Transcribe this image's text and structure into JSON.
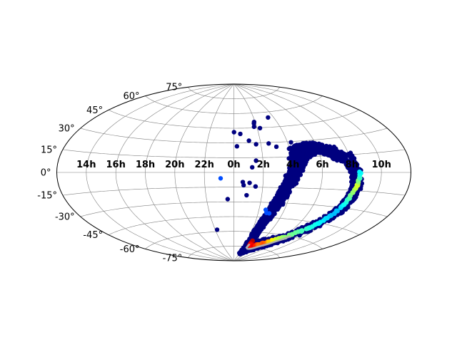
{
  "chart_data": {
    "type": "scatter",
    "projection": "aitoff",
    "grid": true,
    "colormap": "jet",
    "ra_tick_labels": [
      "14h",
      "16h",
      "18h",
      "20h",
      "22h",
      "0h",
      "2h",
      "4h",
      "6h",
      "8h",
      "10h"
    ],
    "dec_tick_labels": [
      "-75°",
      "-60°",
      "-45°",
      "-30°",
      "-15°",
      "0°",
      "15°",
      "30°",
      "45°",
      "60°",
      "75°"
    ],
    "lon_grid_deg": [
      -150,
      -120,
      -90,
      -60,
      -30,
      0,
      30,
      60,
      90,
      120,
      150
    ],
    "lat_grid_deg": [
      -75,
      -60,
      -45,
      -30,
      -15,
      0,
      15,
      30,
      45,
      60,
      75
    ],
    "background_color": "#00007f",
    "high_density_track": [
      [
        40.6,
        -69.7
      ],
      [
        42.7,
        -72.9
      ],
      [
        48.4,
        -74.0
      ],
      [
        56.2,
        -73.2
      ],
      [
        64.0,
        -71.6
      ],
      [
        71.7,
        -69.4
      ],
      [
        79.5,
        -66.8
      ],
      [
        87.7,
        -63.4
      ],
      [
        95.8,
        -59.2
      ],
      [
        104.0,
        -53.9
      ],
      [
        111.0,
        -48.0
      ],
      [
        116.5,
        -41.4
      ],
      [
        120.2,
        -33.9
      ],
      [
        123.0,
        -25.2
      ],
      [
        124.9,
        -17.1
      ],
      [
        126.9,
        -10.1
      ],
      [
        128.1,
        -4.1
      ],
      [
        128.8,
        1.2
      ]
    ],
    "outline_track": [
      [
        40.0,
        -72.2
      ],
      [
        39.3,
        -76.1
      ],
      [
        41.6,
        -76.2
      ],
      [
        44.8,
        -77.1
      ],
      [
        50.5,
        -77.1
      ],
      [
        55.6,
        -76.7
      ],
      [
        61.3,
        -75.7
      ],
      [
        67.7,
        -74.0
      ],
      [
        75.6,
        -71.8
      ],
      [
        82.0,
        -69.8
      ],
      [
        88.6,
        -66.6
      ],
      [
        95.0,
        -63.4
      ],
      [
        100.0,
        -59.7
      ]
    ],
    "sparse_points": [
      [
        -13.5,
        -6.0,
        0.2
      ],
      [
        40.2,
        -40.5,
        0.2
      ],
      [
        38.1,
        -37.5,
        0.2
      ],
      [
        43.7,
        -40.8,
        0.2
      ],
      [
        -27.0,
        -58.0,
        0.0
      ],
      [
        -6.8,
        -27.2,
        0.0
      ],
      [
        7.8,
        39.2,
        0.0
      ],
      [
        17.2,
        32.2,
        0.0
      ],
      [
        24.7,
        28.5,
        0.0
      ],
      [
        26.6,
        46.2,
        0.0
      ],
      [
        27.7,
        49.5,
        0.0
      ],
      [
        28.6,
        51.0,
        0.0
      ],
      [
        33.7,
        44.6,
        0.0
      ],
      [
        38.8,
        29.0,
        0.0
      ],
      [
        46.4,
        25.5,
        0.0
      ],
      [
        51.8,
        54.6,
        0.0
      ],
      [
        63.9,
        29.2,
        0.0
      ],
      [
        57.1,
        13.7,
        0.0
      ],
      [
        0.2,
        41.0,
        0.0
      ],
      [
        3.4,
        26.6,
        0.0
      ],
      [
        18.7,
        5.2,
        0.0
      ],
      [
        16.2,
        -10.6,
        0.0
      ],
      [
        22.5,
        -14.2,
        0.0
      ],
      [
        22.9,
        11.9,
        0.0
      ],
      [
        13.7,
        -23.2,
        0.0
      ],
      [
        10.1,
        -13.0,
        0.0
      ],
      [
        9.2,
        -9.8,
        0.0
      ]
    ]
  }
}
